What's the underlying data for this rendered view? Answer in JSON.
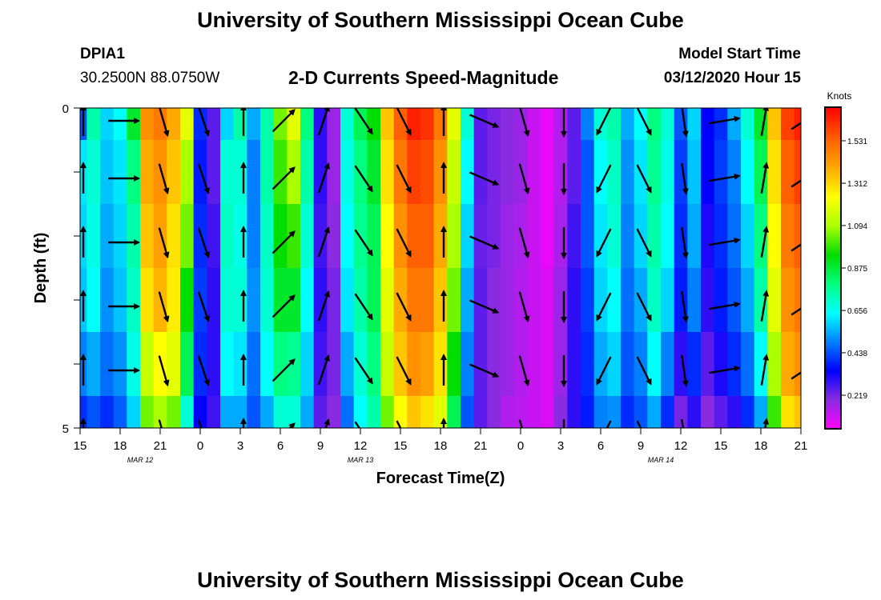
{
  "header": {
    "title": "University of Southern Mississippi Ocean Cube",
    "station_id": "DPIA1",
    "station_coords": "30.2500N 88.0750W",
    "chart_title": "2-D Currents Speed-Magnitude",
    "model_start_label": "Model Start Time",
    "model_start_value": "03/12/2020 Hour 15"
  },
  "footer": {
    "title": "University of Southern Mississippi Ocean Cube"
  },
  "colors": {
    "colormap": [
      "#ff00ff",
      "#8a2be2",
      "#0000ff",
      "#0080ff",
      "#00ffff",
      "#00ff80",
      "#00dd00",
      "#aaff00",
      "#ffff00",
      "#ffaa00",
      "#ff6000",
      "#ff0000"
    ],
    "arrow": "#000000"
  },
  "chart_data": {
    "type": "heatmap",
    "title": "2-D Currents Speed-Magnitude",
    "xlabel": "Forecast Time(Z)",
    "ylabel": "Depth (ft)",
    "x_ticks": [
      "15",
      "18",
      "21",
      "0",
      "3",
      "6",
      "9",
      "12",
      "15",
      "18",
      "21",
      "0",
      "3",
      "6",
      "9",
      "12",
      "15",
      "18",
      "21"
    ],
    "x_range_hours": [
      0,
      54
    ],
    "y_ticks": [
      "0",
      "5"
    ],
    "y_range_ft": [
      0,
      5
    ],
    "date_labels": [
      {
        "text": "MAR 12",
        "hour": 4.5
      },
      {
        "text": "MAR 13",
        "hour": 21
      },
      {
        "text": "MAR 14",
        "hour": 43.5
      }
    ],
    "colorbar": {
      "unit": "Knots",
      "min": 0.05,
      "max": 1.7,
      "ticks": [
        "1.531",
        "1.312",
        "1.094",
        "0.875",
        "0.656",
        "0.438",
        "0.219"
      ],
      "tick_values": [
        1.531,
        1.312,
        1.094,
        0.875,
        0.656,
        0.438,
        0.219
      ]
    },
    "depth_rows": [
      0.0,
      1.0,
      2.0,
      3.0,
      4.0,
      5.0
    ],
    "speed_columns": [
      {
        "hour": 0,
        "v": [
          0.45,
          0.62,
          0.6,
          0.58,
          0.5,
          0.4
        ]
      },
      {
        "hour": 1,
        "v": [
          0.75,
          0.7,
          0.68,
          0.65,
          0.55,
          0.45
        ]
      },
      {
        "hour": 2,
        "v": [
          0.6,
          0.58,
          0.55,
          0.52,
          0.48,
          0.4
        ]
      },
      {
        "hour": 3,
        "v": [
          0.65,
          0.62,
          0.6,
          0.58,
          0.52,
          0.46
        ]
      },
      {
        "hour": 4,
        "v": [
          0.9,
          0.8,
          0.75,
          0.72,
          0.68,
          0.6
        ]
      },
      {
        "hour": 5,
        "v": [
          1.45,
          1.4,
          1.35,
          1.3,
          1.15,
          1.05
        ]
      },
      {
        "hour": 6,
        "v": [
          1.5,
          1.45,
          1.42,
          1.38,
          1.25,
          1.1
        ]
      },
      {
        "hour": 7,
        "v": [
          1.4,
          1.35,
          1.3,
          1.28,
          1.2,
          1.05
        ]
      },
      {
        "hour": 8,
        "v": [
          1.2,
          1.1,
          1.05,
          0.95,
          0.85,
          0.7
        ]
      },
      {
        "hour": 9,
        "v": [
          0.4,
          0.38,
          0.4,
          0.42,
          0.4,
          0.35
        ]
      },
      {
        "hour": 10,
        "v": [
          0.25,
          0.25,
          0.28,
          0.3,
          0.3,
          0.28
        ]
      },
      {
        "hour": 11,
        "v": [
          0.6,
          0.7,
          0.72,
          0.7,
          0.65,
          0.55
        ]
      },
      {
        "hour": 12,
        "v": [
          0.75,
          0.7,
          0.68,
          0.7,
          0.62,
          0.55
        ]
      },
      {
        "hour": 13,
        "v": [
          0.55,
          0.5,
          0.5,
          0.52,
          0.48,
          0.45
        ]
      },
      {
        "hour": 14,
        "v": [
          0.75,
          0.75,
          0.72,
          0.7,
          0.65,
          0.55
        ]
      },
      {
        "hour": 15,
        "v": [
          1.05,
          1.0,
          0.95,
          0.9,
          0.8,
          0.7
        ]
      },
      {
        "hour": 16,
        "v": [
          1.2,
          1.1,
          1.0,
          0.9,
          0.78,
          0.7
        ]
      },
      {
        "hour": 17,
        "v": [
          0.8,
          0.75,
          0.7,
          0.65,
          0.6,
          0.55
        ]
      },
      {
        "hour": 18,
        "v": [
          0.3,
          0.3,
          0.28,
          0.3,
          0.28,
          0.25
        ]
      },
      {
        "hour": 19,
        "v": [
          0.18,
          0.18,
          0.2,
          0.22,
          0.22,
          0.2
        ]
      },
      {
        "hour": 20,
        "v": [
          0.7,
          0.68,
          0.65,
          0.62,
          0.55,
          0.48
        ]
      },
      {
        "hour": 21,
        "v": [
          0.85,
          0.8,
          0.78,
          0.75,
          0.7,
          0.65
        ]
      },
      {
        "hour": 22,
        "v": [
          0.95,
          0.9,
          0.85,
          0.85,
          0.8,
          0.75
        ]
      },
      {
        "hour": 23,
        "v": [
          1.35,
          1.3,
          1.25,
          1.2,
          1.15,
          1.05
        ]
      },
      {
        "hour": 24,
        "v": [
          1.55,
          1.5,
          1.45,
          1.4,
          1.35,
          1.25
        ]
      },
      {
        "hour": 25,
        "v": [
          1.65,
          1.6,
          1.55,
          1.5,
          1.45,
          1.35
        ]
      },
      {
        "hour": 26,
        "v": [
          1.62,
          1.58,
          1.55,
          1.5,
          1.42,
          1.3
        ]
      },
      {
        "hour": 27,
        "v": [
          1.5,
          1.45,
          1.4,
          1.35,
          1.3,
          1.2
        ]
      },
      {
        "hour": 28,
        "v": [
          1.2,
          1.15,
          1.1,
          1.05,
          0.95,
          0.85
        ]
      },
      {
        "hour": 29,
        "v": [
          0.7,
          0.65,
          0.6,
          0.55,
          0.5,
          0.45
        ]
      },
      {
        "hour": 30,
        "v": [
          0.25,
          0.25,
          0.24,
          0.25,
          0.25,
          0.25
        ]
      },
      {
        "hour": 31,
        "v": [
          0.22,
          0.22,
          0.22,
          0.2,
          0.2,
          0.2
        ]
      },
      {
        "hour": 32,
        "v": [
          0.2,
          0.2,
          0.18,
          0.18,
          0.18,
          0.15
        ]
      },
      {
        "hour": 33,
        "v": [
          0.18,
          0.18,
          0.16,
          0.15,
          0.15,
          0.14
        ]
      },
      {
        "hour": 34,
        "v": [
          0.12,
          0.12,
          0.12,
          0.12,
          0.12,
          0.12
        ]
      },
      {
        "hour": 35,
        "v": [
          0.08,
          0.08,
          0.08,
          0.1,
          0.1,
          0.1
        ]
      },
      {
        "hour": 36,
        "v": [
          0.15,
          0.15,
          0.16,
          0.18,
          0.18,
          0.2
        ]
      },
      {
        "hour": 37,
        "v": [
          0.25,
          0.25,
          0.28,
          0.3,
          0.3,
          0.3
        ]
      },
      {
        "hour": 38,
        "v": [
          0.5,
          0.45,
          0.45,
          0.42,
          0.4,
          0.38
        ]
      },
      {
        "hour": 39,
        "v": [
          0.7,
          0.65,
          0.62,
          0.6,
          0.55,
          0.5
        ]
      },
      {
        "hour": 40,
        "v": [
          0.75,
          0.72,
          0.7,
          0.65,
          0.6,
          0.52
        ]
      },
      {
        "hour": 41,
        "v": [
          0.55,
          0.52,
          0.5,
          0.48,
          0.45,
          0.4
        ]
      },
      {
        "hour": 42,
        "v": [
          0.65,
          0.62,
          0.6,
          0.55,
          0.5,
          0.45
        ]
      },
      {
        "hour": 43,
        "v": [
          0.8,
          0.78,
          0.75,
          0.72,
          0.65,
          0.55
        ]
      },
      {
        "hour": 44,
        "v": [
          0.7,
          0.68,
          0.65,
          0.6,
          0.5,
          0.4
        ]
      },
      {
        "hour": 45,
        "v": [
          0.45,
          0.42,
          0.4,
          0.38,
          0.3,
          0.22
        ]
      },
      {
        "hour": 46,
        "v": [
          0.6,
          0.58,
          0.55,
          0.5,
          0.4,
          0.3
        ]
      },
      {
        "hour": 47,
        "v": [
          0.35,
          0.35,
          0.32,
          0.3,
          0.25,
          0.2
        ]
      },
      {
        "hour": 48,
        "v": [
          0.4,
          0.42,
          0.4,
          0.38,
          0.32,
          0.25
        ]
      },
      {
        "hour": 49,
        "v": [
          0.55,
          0.5,
          0.48,
          0.45,
          0.4,
          0.3
        ]
      },
      {
        "hour": 50,
        "v": [
          0.7,
          0.65,
          0.6,
          0.55,
          0.48,
          0.4
        ]
      },
      {
        "hour": 51,
        "v": [
          0.9,
          0.85,
          0.8,
          0.75,
          0.65,
          0.55
        ]
      },
      {
        "hour": 52,
        "v": [
          1.35,
          1.3,
          1.25,
          1.2,
          1.1,
          1.0
        ]
      },
      {
        "hour": 53,
        "v": [
          1.6,
          1.55,
          1.5,
          1.45,
          1.4,
          1.3
        ]
      },
      {
        "hour": 54,
        "v": [
          1.65,
          1.6,
          1.55,
          1.5,
          1.45,
          1.35
        ]
      }
    ],
    "arrow_depths": [
      0.1,
      1.0,
      2.0,
      3.0,
      4.0,
      5.0
    ],
    "arrows": [
      {
        "hour": 0,
        "u": 0.0,
        "v": 0.7
      },
      {
        "hour": 3,
        "u": 0.6,
        "v": 0.0
      },
      {
        "hour": 6,
        "u": 0.2,
        "v": -0.7
      },
      {
        "hour": 9,
        "u": 0.2,
        "v": -0.6
      },
      {
        "hour": 12,
        "u": 0.0,
        "v": 0.6
      },
      {
        "hour": 15,
        "u": 0.5,
        "v": 0.5
      },
      {
        "hour": 18,
        "u": 0.2,
        "v": 0.6
      },
      {
        "hour": 21,
        "u": 0.4,
        "v": -0.6
      },
      {
        "hour": 24,
        "u": 0.3,
        "v": -0.6
      },
      {
        "hour": 27,
        "u": 0.0,
        "v": 0.7
      },
      {
        "hour": 30,
        "u": 0.7,
        "v": -0.3
      },
      {
        "hour": 33,
        "u": 0.2,
        "v": -0.7
      },
      {
        "hour": 36,
        "u": 0.0,
        "v": -0.7
      },
      {
        "hour": 39,
        "u": -0.3,
        "v": -0.6
      },
      {
        "hour": 42,
        "u": 0.3,
        "v": -0.6
      },
      {
        "hour": 45,
        "u": 0.1,
        "v": -0.7
      },
      {
        "hour": 48,
        "u": 0.6,
        "v": 0.1
      },
      {
        "hour": 51,
        "u": 0.1,
        "v": 0.6
      },
      {
        "hour": 54,
        "u": 0.6,
        "v": 0.4
      }
    ]
  }
}
